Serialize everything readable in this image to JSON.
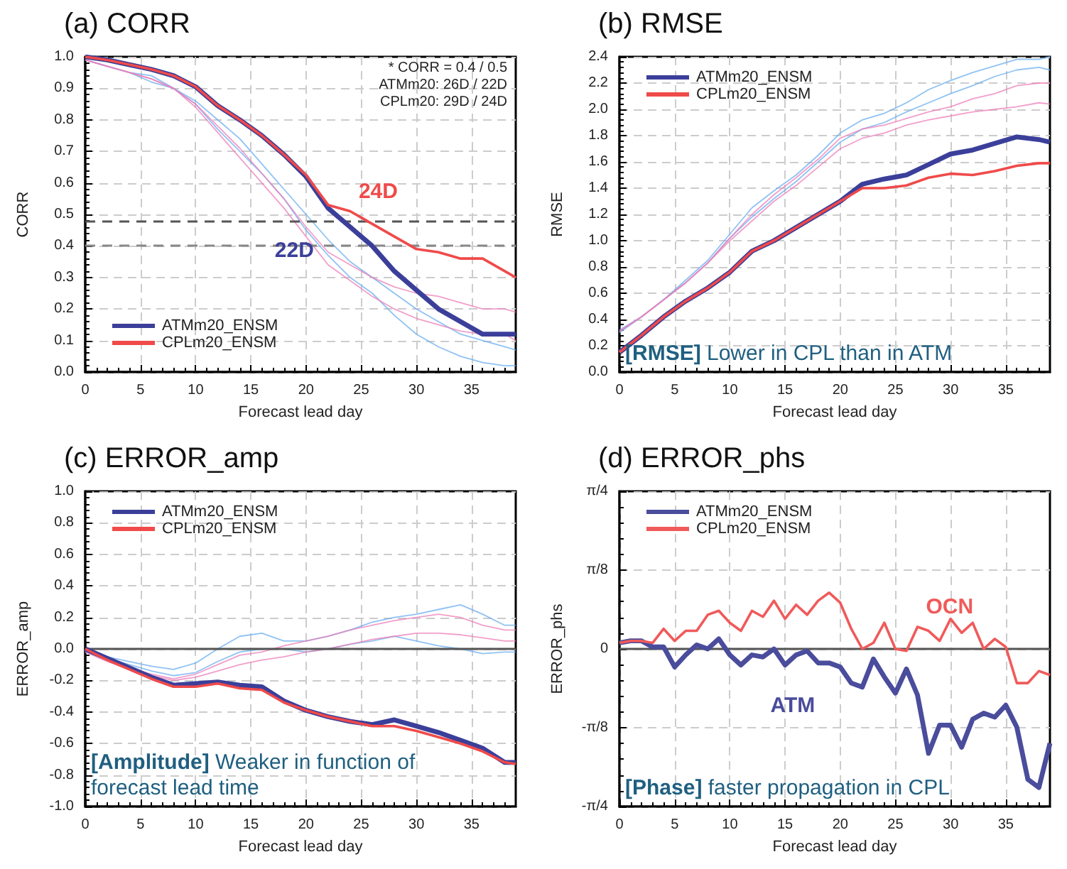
{
  "chart_data": [
    {
      "type": "line",
      "title": "(a) CORR",
      "xlabel": "Forecast lead day",
      "ylabel": "CORR",
      "x": [
        0,
        2,
        4,
        6,
        8,
        10,
        12,
        14,
        16,
        18,
        20,
        22,
        24,
        26,
        28,
        30,
        32,
        34,
        36,
        38,
        39
      ],
      "xlim": [
        0,
        39
      ],
      "xticks": [
        0,
        5,
        10,
        15,
        20,
        25,
        30,
        35
      ],
      "ylim": [
        0,
        1
      ],
      "yticks": [
        {
          "value": 0,
          "label": "0.0"
        },
        0.1,
        0.2,
        0.3,
        0.4,
        0.5,
        0.6,
        0.7,
        0.8,
        0.9,
        {
          "value": 1,
          "label": "1.0"
        }
      ],
      "grid": true,
      "legend": "bottom left",
      "series": [
        {
          "color": "#6aaef0",
          "values": [
            0.99,
            0.97,
            0.95,
            0.92,
            0.9,
            0.85,
            0.77,
            0.7,
            0.63,
            0.55,
            0.45,
            0.37,
            0.3,
            0.25,
            0.18,
            0.12,
            0.08,
            0.05,
            0.03,
            0.02,
            0.02
          ]
        },
        {
          "color": "#6aaef0",
          "values": [
            0.99,
            0.97,
            0.95,
            0.94,
            0.9,
            0.86,
            0.8,
            0.74,
            0.66,
            0.58,
            0.5,
            0.42,
            0.35,
            0.3,
            0.25,
            0.2,
            0.16,
            0.12,
            0.1,
            0.08,
            0.07
          ]
        },
        {
          "color": "#ec7fb8",
          "values": [
            0.99,
            0.97,
            0.95,
            0.93,
            0.9,
            0.85,
            0.78,
            0.71,
            0.63,
            0.55,
            0.46,
            0.38,
            0.34,
            0.3,
            0.27,
            0.25,
            0.24,
            0.22,
            0.2,
            0.2,
            0.19
          ]
        },
        {
          "color": "#ec7fb8",
          "values": [
            0.99,
            0.97,
            0.95,
            0.93,
            0.9,
            0.84,
            0.76,
            0.68,
            0.6,
            0.52,
            0.43,
            0.34,
            0.29,
            0.24,
            0.2,
            0.17,
            0.15,
            0.13,
            0.12,
            0.12,
            0.1
          ]
        },
        {
          "name": "ATMm20_ENSM",
          "color": "#3b3f9a",
          "values": [
            1.0,
            0.99,
            0.975,
            0.96,
            0.94,
            0.905,
            0.845,
            0.8,
            0.75,
            0.69,
            0.62,
            0.52,
            0.46,
            0.4,
            0.32,
            0.26,
            0.2,
            0.16,
            0.12,
            0.12,
            0.12
          ]
        },
        {
          "name": "CPLm20_ENSM",
          "color": "#f04a4a",
          "values": [
            1.0,
            0.99,
            0.975,
            0.96,
            0.94,
            0.905,
            0.845,
            0.8,
            0.75,
            0.69,
            0.625,
            0.53,
            0.51,
            0.47,
            0.43,
            0.39,
            0.38,
            0.36,
            0.36,
            0.32,
            0.3
          ]
        }
      ],
      "ref_lines": [
        {
          "axis": "y",
          "value": 0.48,
          "color": "#555555",
          "line_style": "dashed"
        },
        {
          "axis": "y",
          "value": 0.4,
          "color": "#888888",
          "line_style": "dashed"
        }
      ],
      "annotations": [
        "* CORR = 0.4 / 0.5",
        "ATMm20: 26D / 22D",
        "CPLm20: 29D / 24D",
        {
          "text": "24D",
          "x": 24,
          "y": 0.51
        },
        {
          "text": "22D",
          "x": 22,
          "y": 0.52
        }
      ]
    },
    {
      "type": "line",
      "title": "(b) RMSE",
      "xlabel": "Forecast lead day",
      "ylabel": "RMSE",
      "x": [
        0,
        2,
        4,
        6,
        8,
        10,
        12,
        14,
        16,
        18,
        20,
        22,
        24,
        26,
        28,
        30,
        32,
        34,
        36,
        38,
        39
      ],
      "xlim": [
        0,
        39
      ],
      "xticks": [
        0,
        5,
        10,
        15,
        20,
        25,
        30,
        35
      ],
      "ylim": [
        0,
        2.4
      ],
      "yticks": [
        {
          "value": 0,
          "label": "0.0"
        },
        0.2,
        0.4,
        0.6,
        0.8,
        {
          "value": 1,
          "label": "1.0"
        },
        1.2,
        1.4,
        1.6,
        1.8,
        {
          "value": 2,
          "label": "2.0"
        },
        2.2,
        2.4
      ],
      "grid": true,
      "legend": "top left",
      "series": [
        {
          "color": "#6aaef0",
          "values": [
            0.32,
            0.42,
            0.55,
            0.7,
            0.85,
            1.05,
            1.25,
            1.38,
            1.5,
            1.65,
            1.82,
            1.92,
            1.97,
            2.05,
            2.15,
            2.22,
            2.28,
            2.33,
            2.38,
            2.38,
            2.4
          ]
        },
        {
          "color": "#6aaef0",
          "values": [
            0.3,
            0.42,
            0.55,
            0.68,
            0.83,
            1.02,
            1.18,
            1.32,
            1.45,
            1.6,
            1.75,
            1.85,
            1.9,
            1.98,
            2.05,
            2.12,
            2.18,
            2.25,
            2.3,
            2.32,
            2.3
          ]
        },
        {
          "color": "#ec7fb8",
          "values": [
            0.31,
            0.42,
            0.55,
            0.68,
            0.83,
            1.02,
            1.2,
            1.35,
            1.48,
            1.62,
            1.78,
            1.85,
            1.88,
            1.93,
            1.98,
            2.02,
            2.08,
            2.12,
            2.18,
            2.2,
            2.2
          ]
        },
        {
          "color": "#ec7fb8",
          "values": [
            0.31,
            0.42,
            0.55,
            0.68,
            0.83,
            1.0,
            1.15,
            1.3,
            1.42,
            1.56,
            1.7,
            1.78,
            1.82,
            1.88,
            1.92,
            1.95,
            1.98,
            2.0,
            2.02,
            2.05,
            2.04
          ]
        },
        {
          "name": "ATMm20_ENSM",
          "color": "#3b3f9a",
          "values": [
            0.15,
            0.28,
            0.42,
            0.54,
            0.64,
            0.76,
            0.92,
            1.0,
            1.1,
            1.2,
            1.3,
            1.43,
            1.47,
            1.5,
            1.58,
            1.66,
            1.69,
            1.74,
            1.79,
            1.77,
            1.75
          ]
        },
        {
          "name": "CPLm20_ENSM",
          "color": "#f04a4a",
          "values": [
            0.15,
            0.28,
            0.42,
            0.54,
            0.64,
            0.76,
            0.92,
            1.0,
            1.1,
            1.2,
            1.3,
            1.4,
            1.4,
            1.42,
            1.48,
            1.51,
            1.5,
            1.53,
            1.57,
            1.59,
            1.59
          ]
        }
      ],
      "annotations": [
        "[RMSE] Lower in CPL than in ATM"
      ]
    },
    {
      "type": "line",
      "title": "(c) ERROR_amp",
      "xlabel": "Forecast lead day",
      "ylabel": "ERROR_amp",
      "x": [
        0,
        2,
        4,
        6,
        8,
        10,
        12,
        14,
        16,
        18,
        20,
        22,
        24,
        26,
        28,
        30,
        32,
        34,
        36,
        38,
        39
      ],
      "xlim": [
        0,
        39
      ],
      "xticks": [
        0,
        5,
        10,
        15,
        20,
        25,
        30,
        35
      ],
      "ylim": [
        -1,
        1
      ],
      "yticks": [
        {
          "value": -1,
          "label": "-1.0"
        },
        -0.8,
        -0.6,
        -0.4,
        -0.2,
        {
          "value": 0,
          "label": "0.0"
        },
        0.2,
        0.4,
        0.6,
        0.8,
        {
          "value": 1,
          "label": "1.0"
        }
      ],
      "grid": true,
      "legend": "top left",
      "series": [
        {
          "color": "#6aaef0",
          "values": [
            -0.01,
            -0.05,
            -0.08,
            -0.11,
            -0.13,
            -0.09,
            0.0,
            0.08,
            0.1,
            0.05,
            0.05,
            0.08,
            0.12,
            0.17,
            0.2,
            0.22,
            0.25,
            0.28,
            0.22,
            0.15,
            0.15
          ]
        },
        {
          "color": "#6aaef0",
          "values": [
            -0.02,
            -0.06,
            -0.1,
            -0.14,
            -0.17,
            -0.15,
            -0.08,
            -0.02,
            0.0,
            0.0,
            -0.02,
            0.0,
            0.03,
            0.05,
            0.08,
            0.05,
            0.02,
            0.0,
            -0.03,
            -0.02,
            -0.02
          ]
        },
        {
          "color": "#ec7fb8",
          "values": [
            -0.01,
            -0.07,
            -0.12,
            -0.16,
            -0.19,
            -0.16,
            -0.1,
            -0.04,
            -0.02,
            0.02,
            0.05,
            0.08,
            0.12,
            0.15,
            0.18,
            0.2,
            0.22,
            0.2,
            0.15,
            0.12,
            0.12
          ]
        },
        {
          "color": "#ec7fb8",
          "values": [
            -0.02,
            -0.08,
            -0.13,
            -0.17,
            -0.2,
            -0.18,
            -0.14,
            -0.1,
            -0.07,
            -0.05,
            -0.02,
            0.0,
            0.03,
            0.06,
            0.08,
            0.1,
            0.1,
            0.09,
            0.07,
            0.05,
            0.05
          ]
        },
        {
          "name": "ATMm20_ENSM",
          "color": "#3b3f9a",
          "values": [
            0,
            -0.06,
            -0.12,
            -0.18,
            -0.23,
            -0.22,
            -0.21,
            -0.23,
            -0.24,
            -0.33,
            -0.39,
            -0.43,
            -0.46,
            -0.48,
            -0.45,
            -0.49,
            -0.53,
            -0.58,
            -0.63,
            -0.72,
            -0.72
          ]
        },
        {
          "name": "CPLm20_ENSM",
          "color": "#f04a4a",
          "values": [
            0,
            -0.07,
            -0.13,
            -0.19,
            -0.24,
            -0.24,
            -0.22,
            -0.25,
            -0.26,
            -0.34,
            -0.39,
            -0.43,
            -0.46,
            -0.49,
            -0.49,
            -0.52,
            -0.56,
            -0.6,
            -0.65,
            -0.72,
            -0.73
          ]
        }
      ],
      "ref_lines": [
        {
          "axis": "y",
          "value": 0,
          "color": "#555555",
          "line_style": "solid"
        }
      ],
      "annotations": [
        "[Amplitude] Weaker in function of forecast lead time"
      ]
    },
    {
      "type": "line",
      "title": "(d) ERROR_phs",
      "xlabel": "Forecast lead day",
      "ylabel": "ERROR_phs",
      "x": [
        0,
        1,
        2,
        3,
        4,
        5,
        6,
        7,
        8,
        9,
        10,
        11,
        12,
        13,
        14,
        15,
        16,
        17,
        18,
        19,
        20,
        21,
        22,
        23,
        24,
        25,
        26,
        27,
        28,
        29,
        30,
        31,
        32,
        33,
        34,
        35,
        36,
        37,
        38,
        39
      ],
      "xlim": [
        0,
        39
      ],
      "xticks": [
        0,
        5,
        10,
        15,
        20,
        25,
        30,
        35
      ],
      "ylim": [
        -0.785,
        0.785
      ],
      "yticks": [
        {
          "value": -0.785,
          "label": "-π/4"
        },
        {
          "value": -0.3925,
          "label": "-π/8"
        },
        0,
        {
          "value": 0.3925,
          "label": "π/8"
        },
        {
          "value": 0.785,
          "label": "π/4"
        }
      ],
      "grid": true,
      "legend": "top left",
      "series": [
        {
          "name": "ATMm20_ENSM",
          "color": "#4a4c9c",
          "values": [
            0.03,
            0.04,
            0.04,
            0.01,
            0.01,
            -0.09,
            -0.03,
            0.02,
            0.0,
            0.05,
            -0.03,
            -0.08,
            -0.03,
            -0.04,
            0.0,
            -0.08,
            -0.03,
            -0.01,
            -0.07,
            -0.07,
            -0.09,
            -0.17,
            -0.19,
            -0.05,
            -0.14,
            -0.22,
            -0.1,
            -0.23,
            -0.52,
            -0.38,
            -0.38,
            -0.49,
            -0.35,
            -0.32,
            -0.34,
            -0.28,
            -0.39,
            -0.65,
            -0.69,
            -0.47
          ]
        },
        {
          "name": "CPLm20_ENSM",
          "color": "#f05a5a",
          "values": [
            0.03,
            0.04,
            0.04,
            0.03,
            0.1,
            0.04,
            0.09,
            0.09,
            0.17,
            0.19,
            0.13,
            0.09,
            0.19,
            0.16,
            0.24,
            0.15,
            0.22,
            0.17,
            0.24,
            0.28,
            0.23,
            0.1,
            0.0,
            0.03,
            0.13,
            0.0,
            -0.01,
            0.11,
            0.09,
            0.04,
            0.15,
            0.08,
            0.13,
            0.0,
            0.05,
            0.01,
            -0.17,
            -0.17,
            -0.11,
            -0.13
          ]
        }
      ],
      "ref_lines": [
        {
          "axis": "y",
          "value": 0,
          "color": "#555555",
          "line_style": "solid"
        }
      ],
      "annotations": [
        {
          "text": "OCN",
          "x": 27,
          "y": 0.11
        },
        {
          "text": "ATM",
          "x": 19,
          "y": -0.07
        },
        "[Phase] faster propagation in CPL"
      ]
    }
  ]
}
